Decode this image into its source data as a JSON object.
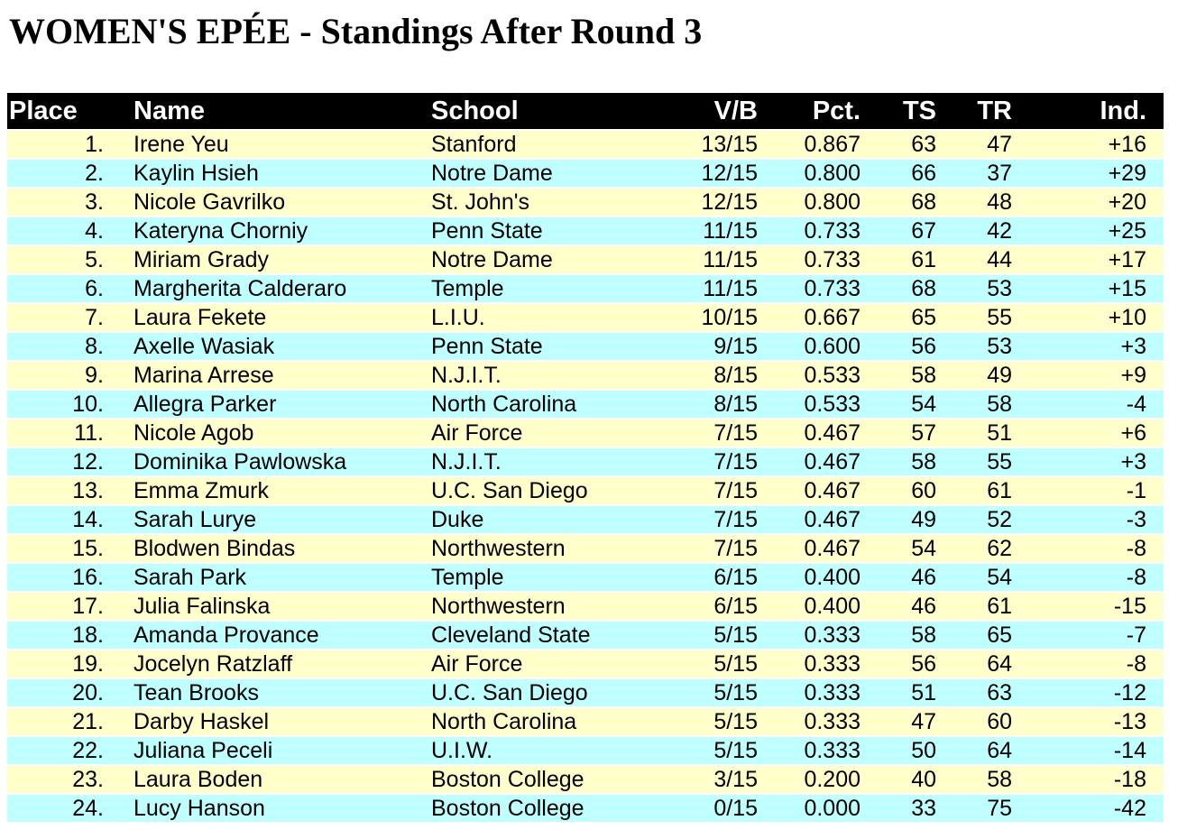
{
  "title": "WOMEN'S EPÉE - Standings After Round 3",
  "colors": {
    "page_bg": "#FFFFFF",
    "header_bg": "#000000",
    "header_text": "#FFFFFF",
    "row_yellow": "#FFFFCC",
    "row_cyan": "#BFFFFF",
    "text": "#000000"
  },
  "table": {
    "headers": [
      "Place",
      "Name",
      "School",
      "V/B",
      "Pct.",
      "TS",
      "TR",
      "Ind."
    ],
    "rows": [
      {
        "place": "1.",
        "name": "Irene Yeu",
        "school": "Stanford",
        "vb": "13/15",
        "pct": "0.867",
        "ts": "63",
        "tr": "47",
        "ind": "+16"
      },
      {
        "place": "2.",
        "name": "Kaylin Hsieh",
        "school": "Notre Dame",
        "vb": "12/15",
        "pct": "0.800",
        "ts": "66",
        "tr": "37",
        "ind": "+29"
      },
      {
        "place": "3.",
        "name": "Nicole Gavrilko",
        "school": "St. John's",
        "vb": "12/15",
        "pct": "0.800",
        "ts": "68",
        "tr": "48",
        "ind": "+20"
      },
      {
        "place": "4.",
        "name": "Kateryna Chorniy",
        "school": "Penn State",
        "vb": "11/15",
        "pct": "0.733",
        "ts": "67",
        "tr": "42",
        "ind": "+25"
      },
      {
        "place": "5.",
        "name": "Miriam Grady",
        "school": "Notre Dame",
        "vb": "11/15",
        "pct": "0.733",
        "ts": "61",
        "tr": "44",
        "ind": "+17"
      },
      {
        "place": "6.",
        "name": "Margherita Calderaro",
        "school": "Temple",
        "vb": "11/15",
        "pct": "0.733",
        "ts": "68",
        "tr": "53",
        "ind": "+15"
      },
      {
        "place": "7.",
        "name": "Laura Fekete",
        "school": "L.I.U.",
        "vb": "10/15",
        "pct": "0.667",
        "ts": "65",
        "tr": "55",
        "ind": "+10"
      },
      {
        "place": "8.",
        "name": "Axelle Wasiak",
        "school": "Penn State",
        "vb": "9/15",
        "pct": "0.600",
        "ts": "56",
        "tr": "53",
        "ind": "+3"
      },
      {
        "place": "9.",
        "name": "Marina Arrese",
        "school": "N.J.I.T.",
        "vb": "8/15",
        "pct": "0.533",
        "ts": "58",
        "tr": "49",
        "ind": "+9"
      },
      {
        "place": "10.",
        "name": "Allegra Parker",
        "school": "North Carolina",
        "vb": "8/15",
        "pct": "0.533",
        "ts": "54",
        "tr": "58",
        "ind": "-4"
      },
      {
        "place": "11.",
        "name": "Nicole Agob",
        "school": "Air Force",
        "vb": "7/15",
        "pct": "0.467",
        "ts": "57",
        "tr": "51",
        "ind": "+6"
      },
      {
        "place": "12.",
        "name": "Dominika Pawlowska",
        "school": "N.J.I.T.",
        "vb": "7/15",
        "pct": "0.467",
        "ts": "58",
        "tr": "55",
        "ind": "+3"
      },
      {
        "place": "13.",
        "name": "Emma Zmurk",
        "school": "U.C. San Diego",
        "vb": "7/15",
        "pct": "0.467",
        "ts": "60",
        "tr": "61",
        "ind": "-1"
      },
      {
        "place": "14.",
        "name": "Sarah Lurye",
        "school": "Duke",
        "vb": "7/15",
        "pct": "0.467",
        "ts": "49",
        "tr": "52",
        "ind": "-3"
      },
      {
        "place": "15.",
        "name": "Blodwen Bindas",
        "school": "Northwestern",
        "vb": "7/15",
        "pct": "0.467",
        "ts": "54",
        "tr": "62",
        "ind": "-8"
      },
      {
        "place": "16.",
        "name": "Sarah Park",
        "school": "Temple",
        "vb": "6/15",
        "pct": "0.400",
        "ts": "46",
        "tr": "54",
        "ind": "-8"
      },
      {
        "place": "17.",
        "name": "Julia Falinska",
        "school": "Northwestern",
        "vb": "6/15",
        "pct": "0.400",
        "ts": "46",
        "tr": "61",
        "ind": "-15"
      },
      {
        "place": "18.",
        "name": "Amanda Provance",
        "school": "Cleveland State",
        "vb": "5/15",
        "pct": "0.333",
        "ts": "58",
        "tr": "65",
        "ind": "-7"
      },
      {
        "place": "19.",
        "name": "Jocelyn Ratzlaff",
        "school": "Air Force",
        "vb": "5/15",
        "pct": "0.333",
        "ts": "56",
        "tr": "64",
        "ind": "-8"
      },
      {
        "place": "20.",
        "name": "Tean Brooks",
        "school": "U.C. San Diego",
        "vb": "5/15",
        "pct": "0.333",
        "ts": "51",
        "tr": "63",
        "ind": "-12"
      },
      {
        "place": "21.",
        "name": "Darby Haskel",
        "school": "North Carolina",
        "vb": "5/15",
        "pct": "0.333",
        "ts": "47",
        "tr": "60",
        "ind": "-13"
      },
      {
        "place": "22.",
        "name": "Juliana Peceli",
        "school": "U.I.W.",
        "vb": "5/15",
        "pct": "0.333",
        "ts": "50",
        "tr": "64",
        "ind": "-14"
      },
      {
        "place": "23.",
        "name": "Laura Boden",
        "school": "Boston College",
        "vb": "3/15",
        "pct": "0.200",
        "ts": "40",
        "tr": "58",
        "ind": "-18"
      },
      {
        "place": "24.",
        "name": "Lucy Hanson",
        "school": "Boston College",
        "vb": "0/15",
        "pct": "0.000",
        "ts": "33",
        "tr": "75",
        "ind": "-42"
      }
    ]
  }
}
